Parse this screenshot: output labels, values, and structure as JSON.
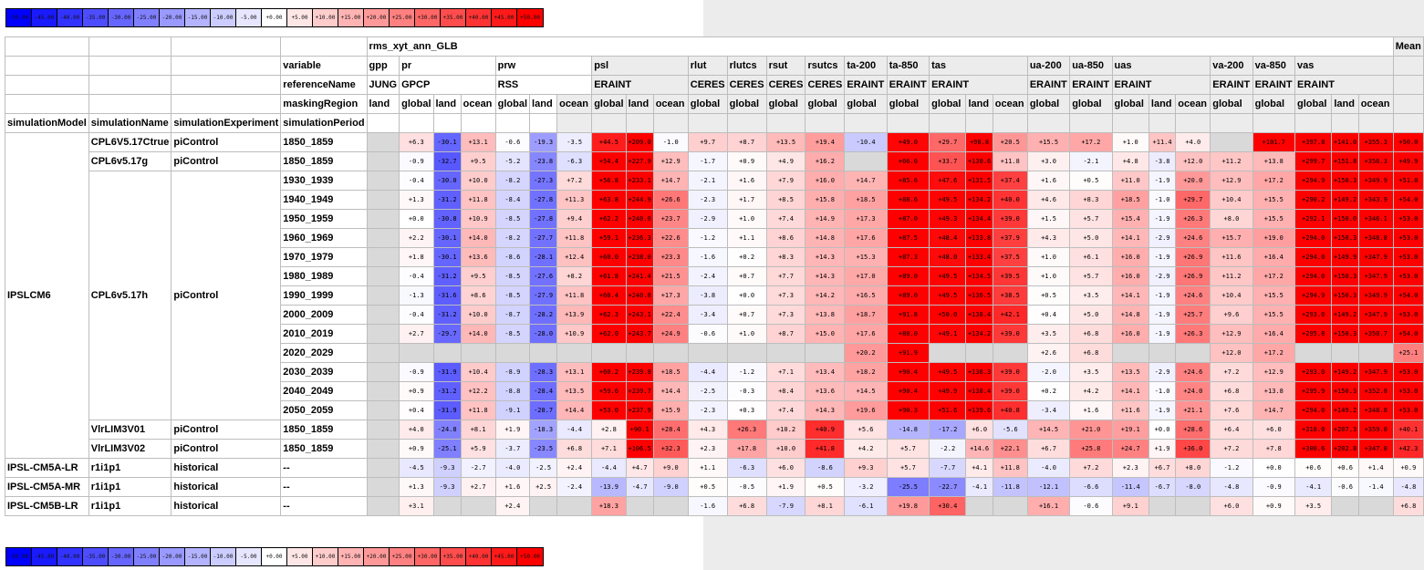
{
  "legend": [
    "-50.00",
    "-45.00",
    "-40.00",
    "-35.00",
    "-30.00",
    "-25.00",
    "-20.00",
    "-15.00",
    "-10.00",
    "-5.00",
    "+0.00",
    "+5.00",
    "+10.00",
    "+15.00",
    "+20.00",
    "+25.00",
    "+30.00",
    "+35.00",
    "+40.00",
    "+45.00",
    "+50.00"
  ],
  "header": {
    "metric": "rms_xyt_ann_GLB",
    "mean": "Mean",
    "row_variable_label": "variable",
    "row_reference_label": "referenceName",
    "row_masking_label": "maskingRegion",
    "sim_columns": [
      "simulationModel",
      "simulationName",
      "simulationExperiment",
      "simulationPeriod"
    ],
    "variables": [
      {
        "name": "gpp",
        "ref": "JUNG",
        "span": 1
      },
      {
        "name": "pr",
        "ref": "GPCP",
        "span": 3
      },
      {
        "name": "prw",
        "ref": "RSS",
        "span": 3
      },
      {
        "name": "psl",
        "ref": "ERAINT",
        "span": 3
      },
      {
        "name": "rlut",
        "ref": "CERES",
        "span": 1
      },
      {
        "name": "rlutcs",
        "ref": "CERES",
        "span": 1
      },
      {
        "name": "rsut",
        "ref": "CERES",
        "span": 1
      },
      {
        "name": "rsutcs",
        "ref": "CERES",
        "span": 1
      },
      {
        "name": "ta-200",
        "ref": "ERAINT",
        "span": 1
      },
      {
        "name": "ta-850",
        "ref": "ERAINT",
        "span": 1
      },
      {
        "name": "tas",
        "ref": "ERAINT",
        "span": 3
      },
      {
        "name": "ua-200",
        "ref": "ERAINT",
        "span": 1
      },
      {
        "name": "ua-850",
        "ref": "ERAINT",
        "span": 1
      },
      {
        "name": "uas",
        "ref": "ERAINT",
        "span": 3
      },
      {
        "name": "va-200",
        "ref": "ERAINT",
        "span": 1
      },
      {
        "name": "va-850",
        "ref": "ERAINT",
        "span": 1
      },
      {
        "name": "vas",
        "ref": "ERAINT",
        "span": 3
      }
    ],
    "regions": [
      "land",
      "global",
      "land",
      "ocean",
      "global",
      "land",
      "ocean",
      "global",
      "land",
      "ocean",
      "global",
      "global",
      "global",
      "global",
      "global",
      "global",
      "global",
      "land",
      "ocean",
      "global",
      "global",
      "global",
      "land",
      "ocean",
      "global",
      "global",
      "global",
      "land",
      "ocean"
    ]
  },
  "rows": [
    {
      "model": "IPSLCM6",
      "name": "CPL6V5.17Ctrue",
      "experiment": "piControl",
      "period": "1850_1859",
      "values": [
        null,
        "+6.3",
        "-30.1",
        "+13.1",
        "-0.6",
        "-19.3",
        "-3.5",
        "+44.5",
        "+209.0",
        "-1.0",
        "+9.7",
        "+8.7",
        "+13.5",
        "+19.4",
        "-10.4",
        "+49.0",
        "+29.7",
        "+98.8",
        "+20.5",
        "+15.5",
        "+17.2",
        "+1.0",
        "+11.4",
        "+4.0",
        null,
        "+101.7",
        "+397.8",
        "+141.0",
        "+355.3",
        "+50.0"
      ]
    },
    {
      "model": "",
      "name": "CPL6v5.17g",
      "experiment": "piControl",
      "period": "1850_1859",
      "values": [
        null,
        "-0.9",
        "-32.7",
        "+9.5",
        "-5.2",
        "-23.8",
        "-6.3",
        "+54.4",
        "+227.9",
        "+12.9",
        "-1.7",
        "+0.9",
        "+4.9",
        "+16.2",
        null,
        "+66.6",
        "+33.7",
        "+130.6",
        "+11.8",
        "+3.0",
        "-2.1",
        "+4.8",
        "-3.8",
        "+12.0",
        "+11.2",
        "+13.8",
        "+299.7",
        "+151.8",
        "+356.3",
        "+49.9"
      ]
    },
    {
      "model": "",
      "name": "CPL6v5.17h",
      "experiment": "piControl",
      "period": "1930_1939",
      "values": [
        null,
        "-0.4",
        "-30.0",
        "+10.0",
        "-8.2",
        "-27.3",
        "+7.2",
        "+56.8",
        "+233.1",
        "+14.7",
        "-2.1",
        "+1.6",
        "+7.9",
        "+16.0",
        "+14.7",
        "+85.6",
        "+47.6",
        "+131.5",
        "+37.4",
        "+1.6",
        "+0.5",
        "+11.0",
        "-1.9",
        "+20.0",
        "+12.9",
        "+17.2",
        "+294.9",
        "+150.3",
        "+349.9",
        "+51.8"
      ]
    },
    {
      "model": "",
      "name": "",
      "experiment": "",
      "period": "1940_1949",
      "values": [
        null,
        "+1.3",
        "-31.2",
        "+11.8",
        "-8.4",
        "-27.8",
        "+11.3",
        "+63.8",
        "+244.9",
        "+26.6",
        "-2.3",
        "+1.7",
        "+8.5",
        "+15.8",
        "+18.5",
        "+88.6",
        "+49.5",
        "+134.2",
        "+40.0",
        "+4.6",
        "+8.3",
        "+18.5",
        "-1.0",
        "+29.7",
        "+10.4",
        "+15.5",
        "+290.2",
        "+149.2",
        "+343.9",
        "+54.0"
      ]
    },
    {
      "model": "",
      "name": "",
      "experiment": "",
      "period": "1950_1959",
      "values": [
        null,
        "+0.0",
        "-30.8",
        "+10.9",
        "-8.5",
        "-27.8",
        "+9.4",
        "+62.2",
        "+240.0",
        "+23.7",
        "-2.9",
        "+1.0",
        "+7.4",
        "+14.9",
        "+17.3",
        "+87.0",
        "+49.3",
        "+134.4",
        "+39.0",
        "+1.5",
        "+5.7",
        "+15.4",
        "-1.9",
        "+26.3",
        "+8.0",
        "+15.5",
        "+292.1",
        "+150.0",
        "+346.1",
        "+53.0"
      ]
    },
    {
      "model": "",
      "name": "",
      "experiment": "",
      "period": "1960_1969",
      "values": [
        null,
        "+2.2",
        "-30.1",
        "+14.0",
        "-8.2",
        "-27.7",
        "+11.8",
        "+59.1",
        "+236.3",
        "+22.6",
        "-1.2",
        "+1.1",
        "+8.6",
        "+14.8",
        "+17.6",
        "+87.5",
        "+48.4",
        "+133.8",
        "+37.9",
        "+4.3",
        "+5.0",
        "+14.1",
        "-2.9",
        "+24.6",
        "+15.7",
        "+19.0",
        "+294.0",
        "+150.3",
        "+348.8",
        "+53.0"
      ]
    },
    {
      "model": "",
      "name": "",
      "experiment": "",
      "period": "1970_1979",
      "values": [
        null,
        "+1.8",
        "-30.1",
        "+13.6",
        "-8.6",
        "-28.1",
        "+12.4",
        "+60.0",
        "+238.0",
        "+23.3",
        "-1.6",
        "+0.2",
        "+8.3",
        "+14.3",
        "+15.3",
        "+87.3",
        "+48.0",
        "+133.4",
        "+37.5",
        "+1.0",
        "+6.1",
        "+16.0",
        "-1.9",
        "+26.9",
        "+11.6",
        "+16.4",
        "+294.0",
        "+149.9",
        "+347.9",
        "+53.0"
      ]
    },
    {
      "model": "",
      "name": "",
      "experiment": "",
      "period": "1980_1989",
      "values": [
        null,
        "-0.4",
        "-31.2",
        "+9.5",
        "-8.5",
        "-27.6",
        "+8.2",
        "+61.8",
        "+241.4",
        "+21.5",
        "-2.4",
        "+0.7",
        "+7.7",
        "+14.3",
        "+17.0",
        "+89.0",
        "+49.5",
        "+134.5",
        "+39.5",
        "+1.0",
        "+5.7",
        "+16.0",
        "-2.9",
        "+26.9",
        "+11.2",
        "+17.2",
        "+294.0",
        "+150.3",
        "+347.9",
        "+53.0"
      ]
    },
    {
      "model": "",
      "name": "",
      "experiment": "",
      "period": "1990_1999",
      "values": [
        null,
        "-1.3",
        "-31.6",
        "+8.6",
        "-8.5",
        "-27.9",
        "+11.8",
        "+60.4",
        "+240.8",
        "+17.3",
        "-3.8",
        "+0.0",
        "+7.3",
        "+14.2",
        "+16.5",
        "+89.0",
        "+49.5",
        "+136.5",
        "+38.5",
        "+0.5",
        "+3.5",
        "+14.1",
        "-1.9",
        "+24.6",
        "+10.4",
        "+15.5",
        "+294.9",
        "+150.3",
        "+349.9",
        "+54.0"
      ]
    },
    {
      "model": "",
      "name": "",
      "experiment": "",
      "period": "2000_2009",
      "values": [
        null,
        "-0.4",
        "-31.2",
        "+10.0",
        "-8.7",
        "-28.2",
        "+13.9",
        "+62.3",
        "+243.1",
        "+22.4",
        "-3.4",
        "+0.7",
        "+7.3",
        "+13.8",
        "+18.7",
        "+91.8",
        "+50.0",
        "+138.4",
        "+42.1",
        "+0.4",
        "+5.0",
        "+14.8",
        "-1.9",
        "+25.7",
        "+9.6",
        "+15.5",
        "+293.0",
        "+149.2",
        "+347.9",
        "+53.0"
      ]
    },
    {
      "model": "",
      "name": "",
      "experiment": "",
      "period": "2010_2019",
      "values": [
        null,
        "+2.7",
        "-29.7",
        "+14.0",
        "-8.5",
        "-28.0",
        "+10.9",
        "+62.0",
        "+243.7",
        "+24.9",
        "-0.6",
        "+1.0",
        "+8.7",
        "+15.0",
        "+17.6",
        "+88.0",
        "+49.1",
        "+134.2",
        "+39.0",
        "+3.5",
        "+6.8",
        "+16.0",
        "-1.9",
        "+26.3",
        "+12.9",
        "+16.4",
        "+295.8",
        "+150.3",
        "+350.7",
        "+54.0"
      ]
    },
    {
      "model": "",
      "name": "",
      "experiment": "",
      "period": "2020_2029",
      "values": [
        null,
        null,
        null,
        null,
        null,
        null,
        null,
        null,
        null,
        null,
        null,
        null,
        null,
        null,
        "+20.2",
        "+91.9",
        null,
        null,
        null,
        "+2.6",
        "+6.8",
        null,
        null,
        null,
        "+12.0",
        "+17.2",
        null,
        null,
        null,
        "+25.1"
      ]
    },
    {
      "model": "",
      "name": "",
      "experiment": "",
      "period": "2030_2039",
      "values": [
        null,
        "-0.9",
        "-31.9",
        "+10.4",
        "-8.9",
        "-28.3",
        "+13.1",
        "+60.2",
        "+239.8",
        "+18.5",
        "-4.4",
        "-1.2",
        "+7.1",
        "+13.4",
        "+18.2",
        "+90.4",
        "+49.5",
        "+136.3",
        "+39.0",
        "-2.0",
        "+3.5",
        "+13.5",
        "-2.9",
        "+24.6",
        "+7.2",
        "+12.9",
        "+293.0",
        "+149.2",
        "+347.9",
        "+53.0"
      ]
    },
    {
      "model": "",
      "name": "",
      "experiment": "",
      "period": "2040_2049",
      "values": [
        null,
        "+0.9",
        "-31.2",
        "+12.2",
        "-8.8",
        "-28.4",
        "+13.5",
        "+59.6",
        "+239.7",
        "+14.4",
        "-2.5",
        "-0.3",
        "+8.4",
        "+13.6",
        "+14.5",
        "+90.4",
        "+49.9",
        "+138.4",
        "+39.0",
        "+0.2",
        "+4.2",
        "+14.1",
        "-1.0",
        "+24.0",
        "+6.8",
        "+13.8",
        "+295.9",
        "+150.3",
        "+352.8",
        "+53.0"
      ]
    },
    {
      "model": "",
      "name": "",
      "experiment": "",
      "period": "2050_2059",
      "values": [
        null,
        "+0.4",
        "-31.9",
        "+11.8",
        "-9.1",
        "-28.7",
        "+14.4",
        "+53.0",
        "+237.9",
        "+15.9",
        "-2.3",
        "+0.3",
        "+7.4",
        "+14.3",
        "+19.6",
        "+90.3",
        "+51.6",
        "+139.6",
        "+40.8",
        "-3.4",
        "+1.6",
        "+11.6",
        "-1.9",
        "+21.1",
        "+7.6",
        "+14.7",
        "+294.0",
        "+149.2",
        "+348.8",
        "+53.0"
      ]
    },
    {
      "model": "",
      "name": "VlrLIM3V01",
      "experiment": "piControl",
      "period": "1850_1859",
      "values": [
        null,
        "+4.0",
        "-24.8",
        "+8.1",
        "+1.9",
        "-18.3",
        "-4.4",
        "+2.8",
        "+90.1",
        "+28.4",
        "+4.3",
        "+26.3",
        "+10.2",
        "+40.9",
        "+5.6",
        "-14.8",
        "-17.2",
        "+6.0",
        "-5.6",
        "+14.5",
        "+21.0",
        "+19.1",
        "+0.0",
        "+28.6",
        "+6.4",
        "+6.0",
        "+310.0",
        "+207.3",
        "+359.0",
        "+40.1"
      ]
    },
    {
      "model": "",
      "name": "VlrLIM3V02",
      "experiment": "piControl",
      "period": "1850_1859",
      "values": [
        null,
        "+0.9",
        "-25.1",
        "+5.9",
        "-3.7",
        "-23.5",
        "+6.8",
        "+7.1",
        "+106.5",
        "+32.3",
        "+2.3",
        "+17.8",
        "+10.0",
        "+41.8",
        "+4.2",
        "+5.7",
        "-2.2",
        "+14.6",
        "+22.1",
        "+6.7",
        "+25.8",
        "+24.7",
        "+1.9",
        "+36.0",
        "+7.2",
        "+7.8",
        "+300.6",
        "+202.8",
        "+347.0",
        "+42.3"
      ]
    },
    {
      "model": "IPSL-CM5A-LR",
      "name": "r1i1p1",
      "experiment": "historical",
      "period": "--",
      "values": [
        null,
        "-4.5",
        "-9.3",
        "-2.7",
        "-4.0",
        "-2.5",
        "+2.4",
        "-4.4",
        "+4.7",
        "+9.0",
        "+1.1",
        "-6.3",
        "+6.0",
        "-8.6",
        "+9.3",
        "+5.7",
        "-7.7",
        "+4.1",
        "+11.8",
        "-4.0",
        "+7.2",
        "+2.3",
        "+6.7",
        "+8.0",
        "-1.2",
        "+0.0",
        "+0.6",
        "+0.6",
        "+1.4",
        "+0.9"
      ]
    },
    {
      "model": "IPSL-CM5A-MR",
      "name": "r1i1p1",
      "experiment": "historical",
      "period": "--",
      "values": [
        null,
        "+1.3",
        "-9.3",
        "+2.7",
        "+1.6",
        "+2.5",
        "-2.4",
        "-13.9",
        "-4.7",
        "-9.0",
        "+0.5",
        "-0.5",
        "+1.9",
        "+0.5",
        "-3.2",
        "-25.5",
        "-22.7",
        "-4.1",
        "-11.8",
        "-12.1",
        "-6.6",
        "-11.4",
        "-6.7",
        "-8.0",
        "-4.8",
        "-0.9",
        "-4.1",
        "-0.6",
        "-1.4",
        "-4.8"
      ]
    },
    {
      "model": "IPSL-CM5B-LR",
      "name": "r1i1p1",
      "experiment": "historical",
      "period": "--",
      "values": [
        null,
        "+3.1",
        null,
        null,
        "+2.4",
        null,
        null,
        "+18.3",
        null,
        null,
        "-1.6",
        "+6.8",
        "-7.9",
        "+8.1",
        "-6.1",
        "+19.8",
        "+30.4",
        null,
        null,
        "+16.1",
        "-0.6",
        "+9.1",
        null,
        null,
        "+6.0",
        "+0.9",
        "+3.5",
        null,
        null,
        "+6.8"
      ]
    }
  ]
}
